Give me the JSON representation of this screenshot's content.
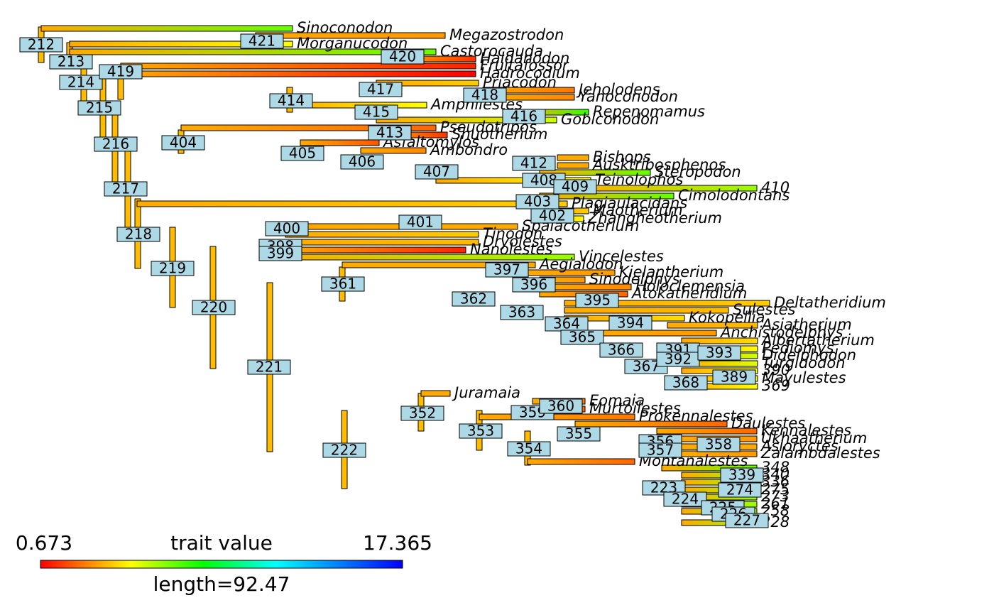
{
  "tips": [
    "Sinoconodon",
    "Megazostrodon",
    "Morganucodon",
    "Castorocauda",
    "Haldanodon",
    "Fruitafossor",
    "Hadrocodium",
    "Priacodon",
    "Jeholodens",
    "Yanoconodon",
    "Amphilestes",
    "Repenomamus",
    "Gobiconodon",
    "Pseudotribos",
    "Shuotherium",
    "Asfaltomylos",
    "Ambondro",
    "Bishops",
    "Ausktribosphenos",
    "Steropodon",
    "Teinolophos",
    "410",
    "Cimolodontans",
    "Plagiaulacidans",
    "Maotherium",
    "Zhangheotherium",
    "Spalacotherium",
    "Tinodon",
    "Dryolestes",
    "Nanolestes",
    "Vincelestes",
    "Aegialodon",
    "Kielantherium",
    "Sinodelphys",
    "Holoclemensia",
    "Atokatheridium",
    "Deltatheridium",
    "Sulestes",
    "Kokopellia",
    "Asiatherium",
    "Anchistodelphys",
    "Albertatherium",
    "Pediomys",
    "Didelphodon",
    "Turgidodon",
    "390",
    "Mayulestes",
    "369",
    "Juramaia",
    "Eomaia",
    "Murtoilestes",
    "Prokennalestes",
    "Daulestes",
    "Kennalestes",
    "Ukhaatherium",
    "Asioryctes",
    "Zalambdalestes",
    "Montanalestes",
    "348",
    "340",
    "336",
    "275",
    "273",
    "261",
    "258",
    "228"
  ],
  "nodes": [
    "212",
    "213",
    "214",
    "215",
    "216",
    "217",
    "218",
    "219",
    "220",
    "221",
    "222",
    "223",
    "224",
    "225",
    "226",
    "227",
    "339",
    "274",
    "352",
    "353",
    "354",
    "355",
    "356",
    "357",
    "358",
    "359",
    "360",
    "361",
    "362",
    "363",
    "364",
    "365",
    "366",
    "367",
    "368",
    "389",
    "391",
    "392",
    "393",
    "394",
    "395",
    "396",
    "397",
    "398",
    "399",
    "400",
    "401",
    "402",
    "403",
    "404",
    "405",
    "406",
    "407",
    "408",
    "409",
    "412",
    "413",
    "414",
    "415",
    "416",
    "417",
    "418",
    "419",
    "420",
    "421"
  ],
  "legend": {
    "min": 0.673,
    "title": "trait value",
    "max": 17.365,
    "length_label": "length=92.47"
  }
}
